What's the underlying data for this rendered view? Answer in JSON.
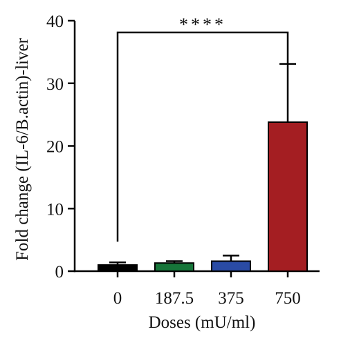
{
  "chart_data": {
    "type": "bar",
    "categories": [
      "0",
      "187.5",
      "375",
      "750"
    ],
    "values": [
      1.0,
      1.3,
      1.6,
      23.8
    ],
    "errors": [
      0.4,
      0.3,
      0.9,
      9.3
    ],
    "bar_colors": [
      "#000000",
      "#17763a",
      "#2a4ba5",
      "#a41e22"
    ],
    "xlabel": "Doses (mU/ml)",
    "ylabel": "Fold change (IL-6/B.actin)-liver",
    "ylim": [
      0,
      40
    ],
    "yticks": [
      0,
      10,
      20,
      30,
      40
    ],
    "grid": false,
    "annotations": [
      {
        "text": "****",
        "from_category": "0",
        "to_category": "750"
      }
    ]
  }
}
